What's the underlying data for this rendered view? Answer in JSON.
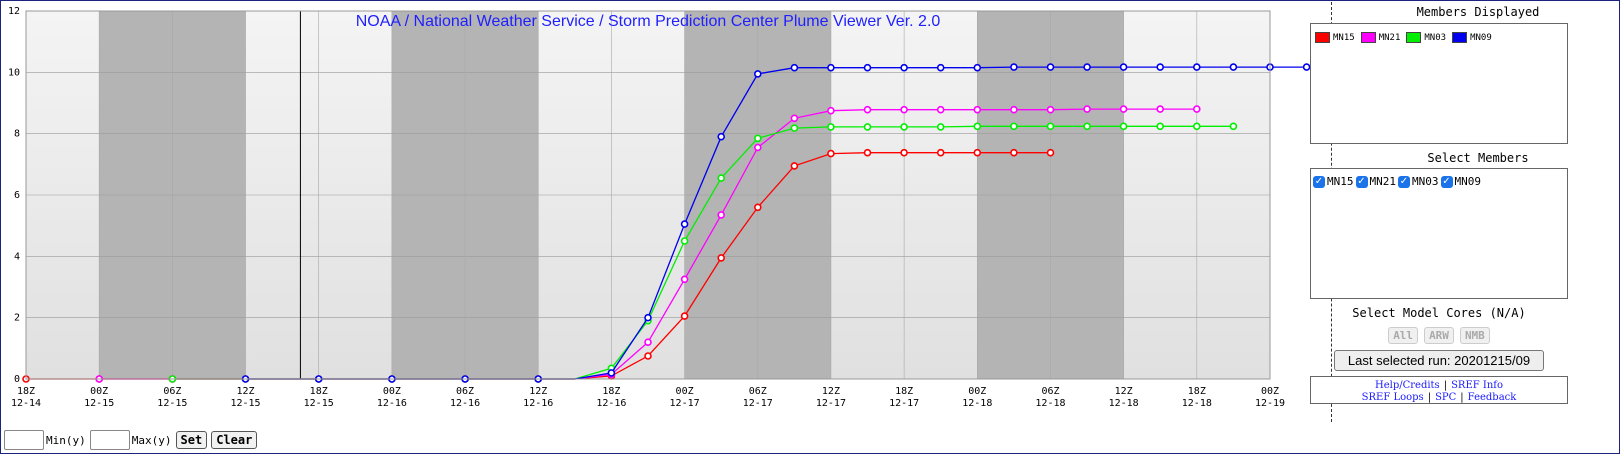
{
  "chart_data": {
    "type": "line",
    "title": "NOAA / National Weather Service / Storm Prediction Center Plume Viewer Ver. 2.0",
    "ylim": [
      0,
      12
    ],
    "yticks": [
      0,
      2,
      4,
      6,
      8,
      10,
      12
    ],
    "x_count": 35,
    "current_time_index": 7.5,
    "xticks": [
      {
        "i": 0,
        "top": "18Z",
        "bottom": "12-14"
      },
      {
        "i": 2,
        "top": "00Z",
        "bottom": "12-15"
      },
      {
        "i": 4,
        "top": "06Z",
        "bottom": "12-15"
      },
      {
        "i": 6,
        "top": "12Z",
        "bottom": "12-15"
      },
      {
        "i": 8,
        "top": "18Z",
        "bottom": "12-15"
      },
      {
        "i": 10,
        "top": "00Z",
        "bottom": "12-16"
      },
      {
        "i": 12,
        "top": "06Z",
        "bottom": "12-16"
      },
      {
        "i": 14,
        "top": "12Z",
        "bottom": "12-16"
      },
      {
        "i": 16,
        "top": "18Z",
        "bottom": "12-16"
      },
      {
        "i": 18,
        "top": "00Z",
        "bottom": "12-17"
      },
      {
        "i": 20,
        "top": "06Z",
        "bottom": "12-17"
      },
      {
        "i": 22,
        "top": "12Z",
        "bottom": "12-17"
      },
      {
        "i": 24,
        "top": "18Z",
        "bottom": "12-17"
      },
      {
        "i": 26,
        "top": "00Z",
        "bottom": "12-18"
      },
      {
        "i": 28,
        "top": "06Z",
        "bottom": "12-18"
      },
      {
        "i": 30,
        "top": "12Z",
        "bottom": "12-18"
      },
      {
        "i": 32,
        "top": "18Z",
        "bottom": "12-18"
      },
      {
        "i": 34,
        "top": "00Z",
        "bottom": "12-19"
      }
    ],
    "night_bands": [
      [
        2,
        6
      ],
      [
        10,
        14
      ],
      [
        18,
        22
      ],
      [
        26,
        30
      ]
    ],
    "series": [
      {
        "name": "MN15",
        "color": "#ff0000",
        "start": 0,
        "values": [
          0,
          0,
          0,
          0,
          0,
          0,
          0,
          0,
          0,
          0,
          0,
          0,
          0,
          0,
          0,
          0,
          0.1,
          0.75,
          2.05,
          3.95,
          5.6,
          6.95,
          7.35,
          7.38,
          7.38,
          7.38,
          7.38,
          7.38,
          7.38
        ]
      },
      {
        "name": "MN21",
        "color": "#ff00ff",
        "start": 2,
        "values": [
          0,
          0,
          0,
          0,
          0,
          0,
          0,
          0,
          0,
          0,
          0,
          0,
          0,
          0,
          0.15,
          1.2,
          3.25,
          5.35,
          7.55,
          8.5,
          8.75,
          8.78,
          8.78,
          8.78,
          8.78,
          8.78,
          8.78,
          8.8,
          8.8,
          8.8,
          8.8
        ]
      },
      {
        "name": "MN03",
        "color": "#00ee00",
        "start": 4,
        "values": [
          0,
          0,
          0,
          0,
          0,
          0,
          0,
          0,
          0,
          0,
          0,
          0,
          0.35,
          1.9,
          4.5,
          6.55,
          7.85,
          8.18,
          8.22,
          8.22,
          8.22,
          8.22,
          8.24,
          8.24,
          8.24,
          8.24,
          8.24,
          8.24,
          8.24,
          8.24
        ]
      },
      {
        "name": "MN09",
        "color": "#0000ee",
        "start": 6,
        "values": [
          0,
          0,
          0,
          0,
          0,
          0,
          0,
          0,
          0,
          0,
          0.2,
          2.0,
          5.05,
          7.9,
          9.95,
          10.15,
          10.15,
          10.15,
          10.15,
          10.15,
          10.15,
          10.17,
          10.17,
          10.17,
          10.17,
          10.17,
          10.17,
          10.17,
          10.17,
          10.17
        ]
      }
    ]
  },
  "side": {
    "members_title": "Members Displayed",
    "legend": [
      {
        "name": "MN15",
        "color": "#ff0000"
      },
      {
        "name": "MN21",
        "color": "#ff00ff"
      },
      {
        "name": "MN03",
        "color": "#00ee00"
      },
      {
        "name": "MN09",
        "color": "#0000ee"
      }
    ],
    "select_title": "Select Members",
    "checkboxes": [
      "MN15",
      "MN21",
      "MN03",
      "MN09"
    ],
    "cores_title": "Select Model Cores (N/A)",
    "cores": [
      "All",
      "ARW",
      "NMB"
    ],
    "last_run": "Last selected run: 20201215/09",
    "links": {
      "help": "Help/Credits",
      "sref_info": "SREF Info",
      "sref_loops": "SREF Loops",
      "spc": "SPC",
      "feedback": "Feedback"
    }
  },
  "controls": {
    "min_label": "Min(y)",
    "max_label": "Max(y)",
    "set": "Set",
    "clear": "Clear"
  }
}
